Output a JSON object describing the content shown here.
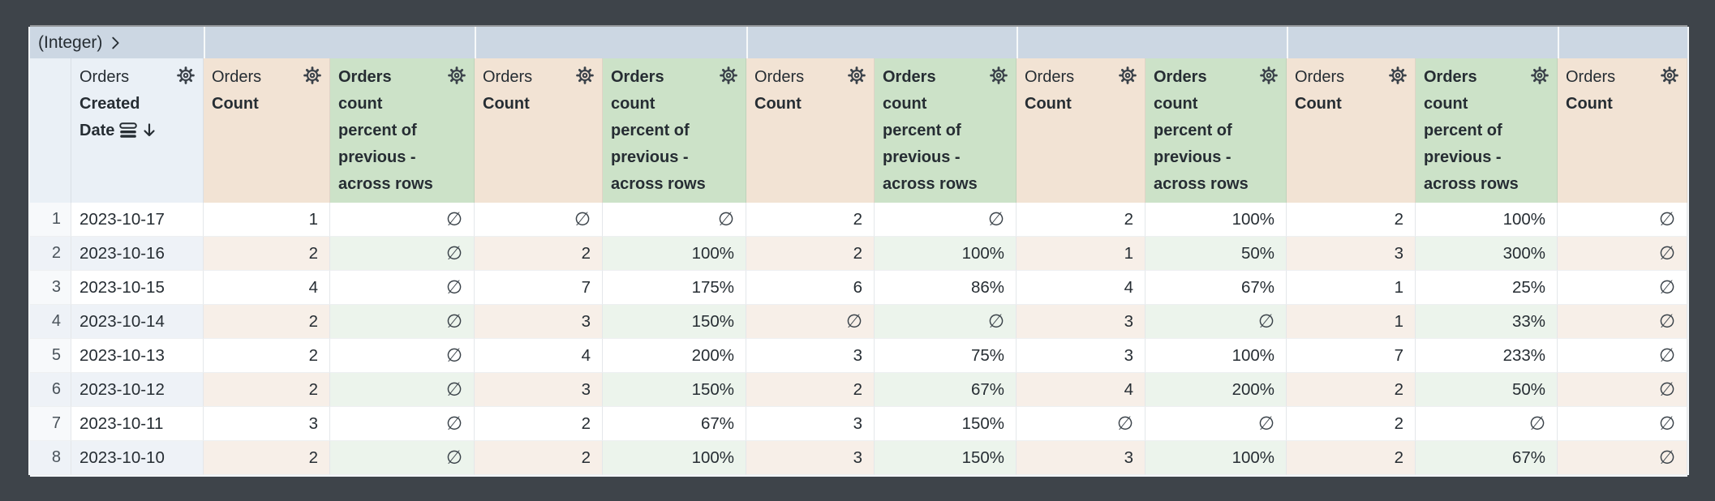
{
  "colors": {
    "frame-bg": "#3e444a",
    "band-bg": "#ccd7e3",
    "dim-header-bg": "#eaf0f6",
    "count-header-bg": "#f2e3d4",
    "calc-header-bg": "#cce2c8",
    "row-even-dim": "#eef2f7",
    "row-even-count": "#f7efe8",
    "row-even-calc": "#ecf4ec",
    "text": "#262d33",
    "rownum-text": "#49525a"
  },
  "pivot_bar": {
    "field_type_label": "(Integer)",
    "expand_icon": "chevron-right-icon",
    "value_cells": [
      "",
      "",
      "",
      "",
      "",
      ""
    ]
  },
  "header": {
    "row_number_header": "",
    "dimension": {
      "view": "Orders",
      "field": "Created Date",
      "sort_icon": "sort-rows-icon",
      "sort_direction_icon": "arrow-down-icon"
    },
    "measure_label": {
      "view": "Orders",
      "field": "Count"
    },
    "calc_label": "Orders count percent of previous - across rows",
    "settings_icon": "gear-icon"
  },
  "columns": [
    {
      "kind": "count"
    },
    {
      "kind": "percent"
    },
    {
      "kind": "count"
    },
    {
      "kind": "percent"
    },
    {
      "kind": "count"
    },
    {
      "kind": "percent"
    },
    {
      "kind": "count"
    },
    {
      "kind": "percent"
    },
    {
      "kind": "count"
    },
    {
      "kind": "percent"
    },
    {
      "kind": "count"
    }
  ],
  "null_symbol": "∅",
  "rows": [
    {
      "index": "1",
      "date": "2023-10-17",
      "cells": [
        "1",
        "∅",
        "∅",
        "∅",
        "2",
        "∅",
        "2",
        "100%",
        "2",
        "100%",
        "∅"
      ]
    },
    {
      "index": "2",
      "date": "2023-10-16",
      "cells": [
        "2",
        "∅",
        "2",
        "100%",
        "2",
        "100%",
        "1",
        "50%",
        "3",
        "300%",
        "∅"
      ]
    },
    {
      "index": "3",
      "date": "2023-10-15",
      "cells": [
        "4",
        "∅",
        "7",
        "175%",
        "6",
        "86%",
        "4",
        "67%",
        "1",
        "25%",
        "∅"
      ]
    },
    {
      "index": "4",
      "date": "2023-10-14",
      "cells": [
        "2",
        "∅",
        "3",
        "150%",
        "∅",
        "∅",
        "3",
        "∅",
        "1",
        "33%",
        "∅"
      ]
    },
    {
      "index": "5",
      "date": "2023-10-13",
      "cells": [
        "2",
        "∅",
        "4",
        "200%",
        "3",
        "75%",
        "3",
        "100%",
        "7",
        "233%",
        "∅"
      ]
    },
    {
      "index": "6",
      "date": "2023-10-12",
      "cells": [
        "2",
        "∅",
        "3",
        "150%",
        "2",
        "67%",
        "4",
        "200%",
        "2",
        "50%",
        "∅"
      ]
    },
    {
      "index": "7",
      "date": "2023-10-11",
      "cells": [
        "3",
        "∅",
        "2",
        "67%",
        "3",
        "150%",
        "∅",
        "∅",
        "2",
        "∅",
        "∅"
      ]
    },
    {
      "index": "8",
      "date": "2023-10-10",
      "cells": [
        "2",
        "∅",
        "2",
        "100%",
        "3",
        "150%",
        "3",
        "100%",
        "2",
        "67%",
        "∅"
      ]
    }
  ]
}
